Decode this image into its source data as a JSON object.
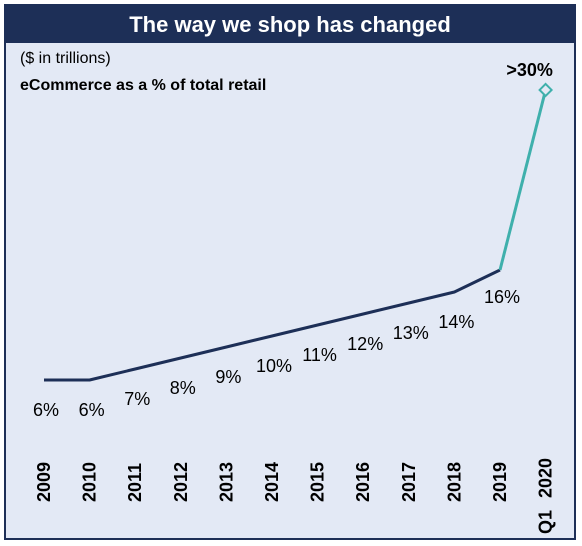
{
  "chart_data": {
    "type": "line",
    "title": "The way we shop has changed",
    "subtitle": "($ in trillions)",
    "ylabel": "eCommerce as a % of total retail",
    "categories": [
      "2009",
      "2010",
      "2011",
      "2012",
      "2013",
      "2014",
      "2015",
      "2016",
      "2017",
      "2018",
      "2019",
      "Q1 2020"
    ],
    "values": [
      6,
      6,
      7,
      8,
      9,
      10,
      11,
      12,
      13,
      14,
      16,
      30
    ],
    "labels": [
      "6%",
      "6%",
      "7%",
      "8%",
      "9%",
      "10%",
      "11%",
      "12%",
      "13%",
      "14%",
      "16%",
      ">30%"
    ],
    "colors": {
      "line": "#1d2f57",
      "highlight": "#3fb0ac",
      "title_bar": "#1d2f57",
      "background": "#e3e9f5"
    },
    "grid": false,
    "legend": "none"
  }
}
